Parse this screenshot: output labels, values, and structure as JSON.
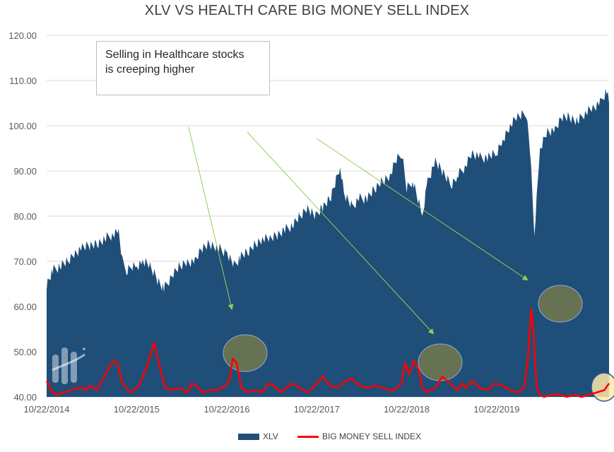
{
  "chart_data": {
    "type": "area",
    "title": "XLV VS HEALTH CARE BIG MONEY SELL INDEX",
    "xlabel": "",
    "ylabel": "",
    "ylim": [
      40,
      120
    ],
    "y_ticks": [
      "40.00",
      "50.00",
      "60.00",
      "70.00",
      "80.00",
      "90.00",
      "100.00",
      "110.00",
      "120.00"
    ],
    "x_tick_labels": [
      "10/22/2014",
      "10/22/2015",
      "10/22/2016",
      "10/22/2017",
      "10/22/2018",
      "10/22/2019"
    ],
    "x_tick_dates": [
      "2014-10-22",
      "2015-10-22",
      "2016-10-22",
      "2017-10-22",
      "2018-10-22",
      "2019-10-22"
    ],
    "grid": true,
    "legend_position": "bottom",
    "series": [
      {
        "name": "XLV",
        "kind": "area",
        "color": "#1f4e79",
        "x": [
          "2014-10-22",
          "2014-11-15",
          "2014-12-15",
          "2015-01-15",
          "2015-02-15",
          "2015-03-15",
          "2015-04-15",
          "2015-05-15",
          "2015-06-15",
          "2015-07-15",
          "2015-08-10",
          "2015-08-25",
          "2015-09-15",
          "2015-10-01",
          "2015-10-22",
          "2015-11-15",
          "2015-12-15",
          "2016-01-15",
          "2016-02-10",
          "2016-03-15",
          "2016-04-15",
          "2016-05-15",
          "2016-06-15",
          "2016-07-15",
          "2016-08-15",
          "2016-09-15",
          "2016-10-22",
          "2016-11-08",
          "2016-11-20",
          "2016-12-15",
          "2017-01-15",
          "2017-02-15",
          "2017-03-15",
          "2017-04-15",
          "2017-05-15",
          "2017-06-15",
          "2017-07-15",
          "2017-08-15",
          "2017-09-15",
          "2017-10-22",
          "2017-11-15",
          "2017-12-15",
          "2018-01-25",
          "2018-02-09",
          "2018-03-15",
          "2018-04-15",
          "2018-05-15",
          "2018-06-15",
          "2018-07-15",
          "2018-08-15",
          "2018-09-15",
          "2018-10-03",
          "2018-10-22",
          "2018-11-15",
          "2018-12-24",
          "2019-01-15",
          "2019-02-15",
          "2019-03-15",
          "2019-04-20",
          "2019-05-15",
          "2019-06-15",
          "2019-07-15",
          "2019-08-15",
          "2019-09-15",
          "2019-10-22",
          "2019-11-15",
          "2019-12-15",
          "2020-01-15",
          "2020-02-19",
          "2020-03-05",
          "2020-03-23",
          "2020-04-15",
          "2020-05-15",
          "2020-06-15",
          "2020-07-15",
          "2020-08-15",
          "2020-09-15",
          "2020-10-15",
          "2020-11-15",
          "2020-12-15",
          "2021-01-10",
          "2021-01-20"
        ],
        "values": [
          65,
          68,
          69,
          70,
          72,
          73,
          73.5,
          74,
          75,
          76,
          76.5,
          70,
          68,
          69,
          69,
          70,
          69,
          66,
          64,
          67,
          69,
          70,
          70,
          73,
          74,
          73,
          72,
          70,
          69,
          71,
          72,
          74,
          75,
          75,
          76,
          77,
          78,
          80,
          82,
          80,
          82,
          84,
          91,
          85,
          82,
          84,
          84,
          86,
          88,
          89,
          93,
          94,
          86,
          88,
          80,
          88,
          92,
          90,
          87,
          89,
          91,
          94,
          93,
          93,
          94,
          97,
          100,
          102,
          103,
          95,
          76,
          95,
          99,
          99,
          102,
          102,
          101,
          103,
          104,
          105,
          108,
          105
        ]
      },
      {
        "name": "BIG MONEY SELL INDEX",
        "kind": "line",
        "color": "#ff0000",
        "x": [
          "2014-10-22",
          "2014-11-01",
          "2014-11-15",
          "2014-12-01",
          "2015-01-01",
          "2015-02-01",
          "2015-03-01",
          "2015-03-15",
          "2015-04-01",
          "2015-04-15",
          "2015-05-01",
          "2015-05-15",
          "2015-06-01",
          "2015-06-15",
          "2015-07-01",
          "2015-07-20",
          "2015-08-05",
          "2015-08-25",
          "2015-09-10",
          "2015-09-25",
          "2015-10-10",
          "2015-11-01",
          "2015-12-01",
          "2016-01-01",
          "2016-01-20",
          "2016-02-15",
          "2016-03-15",
          "2016-04-15",
          "2016-05-15",
          "2016-06-01",
          "2016-06-20",
          "2016-07-15",
          "2016-08-15",
          "2016-09-15",
          "2016-10-01",
          "2016-10-15",
          "2016-11-01",
          "2016-11-15",
          "2016-12-01",
          "2016-12-20",
          "2017-01-15",
          "2017-02-15",
          "2017-03-15",
          "2017-04-10",
          "2017-05-01",
          "2017-06-01",
          "2017-06-20",
          "2017-07-15",
          "2017-08-15",
          "2017-09-15",
          "2017-10-15",
          "2017-11-15",
          "2017-12-15",
          "2018-01-15",
          "2018-02-15",
          "2018-03-15",
          "2018-04-15",
          "2018-05-15",
          "2018-06-15",
          "2018-07-15",
          "2018-08-15",
          "2018-09-01",
          "2018-10-01",
          "2018-10-15",
          "2018-11-01",
          "2018-11-20",
          "2018-12-10",
          "2018-12-25",
          "2019-01-10",
          "2019-01-25",
          "2019-02-15",
          "2019-03-15",
          "2019-04-15",
          "2019-05-15",
          "2019-06-05",
          "2019-06-20",
          "2019-07-15",
          "2019-08-15",
          "2019-09-15",
          "2019-10-15",
          "2019-11-15",
          "2019-12-15",
          "2020-01-15",
          "2020-02-10",
          "2020-02-25",
          "2020-03-10",
          "2020-03-20",
          "2020-04-01",
          "2020-04-15",
          "2020-05-01",
          "2020-06-01",
          "2020-07-01",
          "2020-08-01",
          "2020-09-01",
          "2020-10-01",
          "2020-11-01",
          "2020-12-01",
          "2021-01-01",
          "2021-01-20"
        ],
        "values": [
          43.5,
          42.5,
          41.0,
          40.5,
          41.0,
          41.5,
          42.0,
          42.0,
          41.5,
          42.5,
          42.0,
          41.5,
          43.5,
          44.5,
          46.5,
          48.0,
          47.5,
          43.0,
          42.0,
          41.0,
          41.5,
          42.5,
          46.5,
          52.0,
          47.5,
          42.0,
          41.5,
          42.0,
          41.0,
          43.0,
          42.5,
          41.0,
          41.5,
          41.5,
          42.0,
          42.5,
          43.5,
          48.5,
          47.5,
          42.0,
          41.0,
          41.5,
          41.0,
          43.0,
          42.5,
          41.0,
          42.0,
          43.0,
          42.0,
          41.0,
          42.5,
          44.5,
          42.5,
          42.0,
          43.5,
          44.0,
          42.5,
          42.0,
          42.5,
          42.0,
          41.5,
          41.5,
          43.0,
          47.5,
          45.0,
          48.0,
          46.0,
          42.0,
          41.0,
          41.5,
          42.0,
          44.5,
          43.0,
          41.5,
          43.0,
          42.0,
          43.5,
          42.0,
          41.5,
          43.0,
          42.5,
          41.5,
          41.0,
          42.0,
          48.0,
          59.5,
          54.0,
          42.0,
          40.5,
          40.0,
          40.5,
          40.5,
          40.0,
          40.5,
          40.0,
          40.5,
          41.0,
          41.5,
          43.0
        ]
      }
    ],
    "annotations": [
      {
        "text_lines": [
          "Selling in Healthcare stocks",
          "is creeping higher"
        ]
      }
    ]
  },
  "legend": {
    "xlv_label": "XLV",
    "sell_label": "BIG MONEY SELL INDEX"
  }
}
